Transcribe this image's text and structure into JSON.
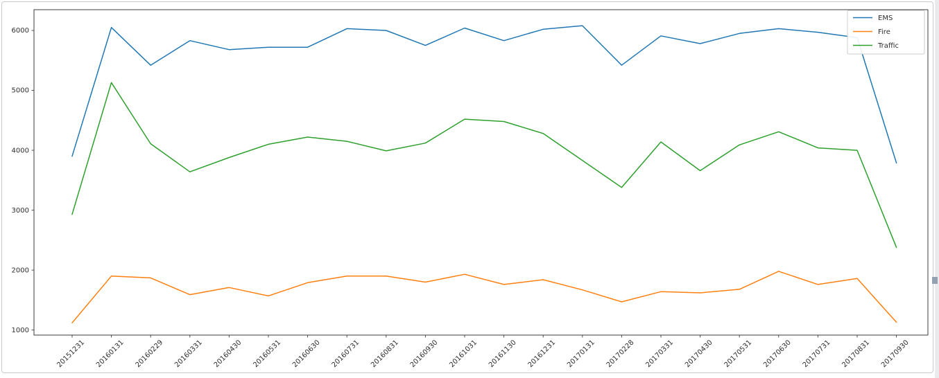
{
  "window": {
    "background_color": "#ffffff",
    "panel_border_color": "#c6c9cd",
    "right_strip_color": "#ebebed",
    "scroll_grip_color": "#93a1b1"
  },
  "chart_data": {
    "type": "line",
    "title": "",
    "xlabel": "",
    "ylabel": "",
    "grid": false,
    "legend_position": "upper right",
    "x_tick_rotation": 45,
    "axis_color": "#3b3b3b",
    "tick_label_color": "#2e2e2e",
    "legend_border_color": "#cccccc",
    "y_ticks": [
      1000,
      2000,
      3000,
      4000,
      5000,
      6000
    ],
    "ylim": [
      915,
      6340
    ],
    "categories": [
      "20151231",
      "20160131",
      "20160229",
      "20160331",
      "20160430",
      "20160531",
      "20160630",
      "20160731",
      "20160831",
      "20160930",
      "20161031",
      "20161130",
      "20161231",
      "20170131",
      "20170228",
      "20170331",
      "20170430",
      "20170531",
      "20170630",
      "20170731",
      "20170831",
      "20170930"
    ],
    "series": [
      {
        "name": "EMS",
        "color": "#1f77b4",
        "values": [
          3900,
          6050,
          5420,
          5830,
          5680,
          5720,
          5720,
          6030,
          6000,
          5750,
          6040,
          5830,
          6020,
          6080,
          5420,
          5910,
          5780,
          5950,
          6030,
          5970,
          5880,
          3790
        ]
      },
      {
        "name": "Fire",
        "color": "#ff7f0e",
        "values": [
          1120,
          1900,
          1870,
          1590,
          1710,
          1570,
          1790,
          1900,
          1900,
          1800,
          1930,
          1760,
          1840,
          1670,
          1470,
          1640,
          1620,
          1680,
          1980,
          1760,
          1860,
          1130
        ]
      },
      {
        "name": "Traffic",
        "color": "#2ca02c",
        "values": [
          2930,
          5130,
          4110,
          3640,
          3880,
          4100,
          4220,
          4150,
          3990,
          4120,
          4520,
          4480,
          4280,
          3830,
          3380,
          4140,
          3660,
          4090,
          4310,
          4040,
          4000,
          2380
        ]
      }
    ]
  }
}
